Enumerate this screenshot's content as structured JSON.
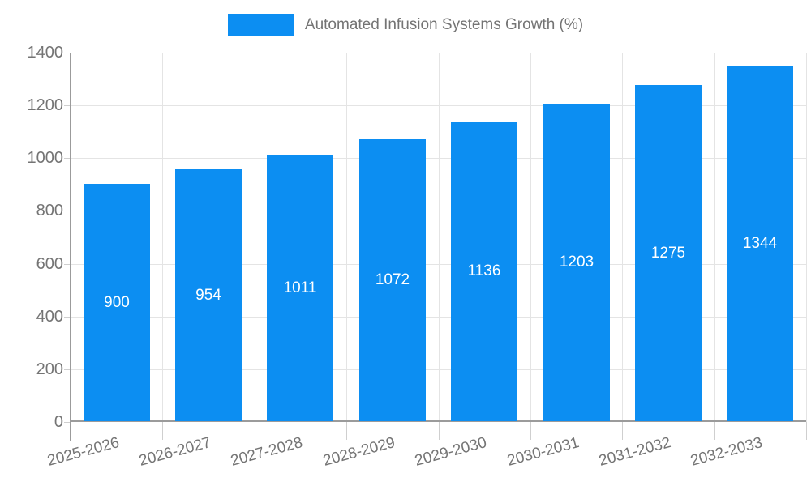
{
  "chart_data": {
    "type": "bar",
    "title": "Automated Infusion Systems Growth (%)",
    "categories": [
      "2025-2026",
      "2026-2027",
      "2027-2028",
      "2028-2029",
      "2029-2030",
      "2030-2031",
      "2031-2032",
      "2032-2033"
    ],
    "series": [
      {
        "name": "Automated Infusion Systems Growth (%)",
        "values": [
          900,
          954,
          1011,
          1072,
          1136,
          1203,
          1275,
          1344
        ]
      }
    ],
    "xlabel": "",
    "ylabel": "",
    "ylim": [
      0,
      1400
    ],
    "yticks": [
      0,
      200,
      400,
      600,
      800,
      1000,
      1200,
      1400
    ],
    "grid": "horizontal-and-vertical",
    "legend_position": "top",
    "x_tick_rotation_deg": -15,
    "bar_value_labels_inside": true,
    "colors": {
      "bar": "#0c8ef2",
      "bar_label": "#ffffff",
      "grid": "#e4e4e4",
      "tick": "#cfcfcf",
      "axis": "#9b9b9b",
      "text": "#747474",
      "background": "#ffffff"
    }
  }
}
